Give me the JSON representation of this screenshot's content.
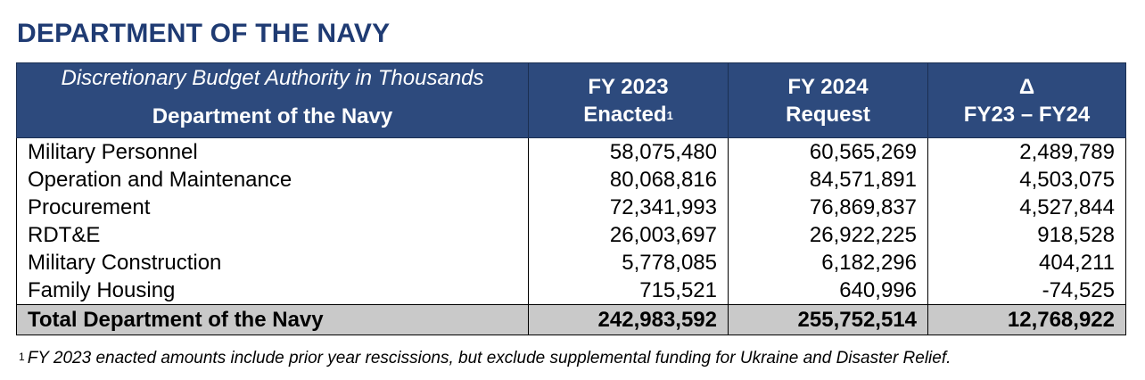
{
  "heading": "DEPARTMENT OF THE NAVY",
  "table": {
    "header": {
      "col1_sub": "Discretionary Budget Authority in Thousands",
      "col1_main": "Department of the Navy",
      "col2_line1": "FY 2023",
      "col2_line2": "Enacted",
      "col2_marker": "1",
      "col3_line1": "FY 2024",
      "col3_line2": "Request",
      "col4_line1": "Δ",
      "col4_line2": "FY23 – FY24"
    },
    "rows": [
      {
        "label": "Military Personnel",
        "fy2023": "58,075,480",
        "fy2024": "60,565,269",
        "delta": "2,489,789"
      },
      {
        "label": "Operation and Maintenance",
        "fy2023": "80,068,816",
        "fy2024": "84,571,891",
        "delta": "4,503,075"
      },
      {
        "label": "Procurement",
        "fy2023": "72,341,993",
        "fy2024": "76,869,837",
        "delta": "4,527,844"
      },
      {
        "label": "RDT&E",
        "fy2023": "26,003,697",
        "fy2024": "26,922,225",
        "delta": "918,528"
      },
      {
        "label": "Military Construction",
        "fy2023": "5,778,085",
        "fy2024": "6,182,296",
        "delta": "404,211"
      },
      {
        "label": "Family Housing",
        "fy2023": "715,521",
        "fy2024": "640,996",
        "delta": "-74,525"
      }
    ],
    "total": {
      "label": "Total Department of the Navy",
      "fy2023": "242,983,592",
      "fy2024": "255,752,514",
      "delta": "12,768,922"
    }
  },
  "footnote": {
    "marker": "1",
    "text": "FY 2023 enacted amounts include prior year rescissions, but exclude supplemental funding for Ukraine and Disaster Relief."
  },
  "colors": {
    "heading": "#1f3b73",
    "header_bg": "#2d4a7d",
    "total_bg": "#c9c9c9"
  }
}
